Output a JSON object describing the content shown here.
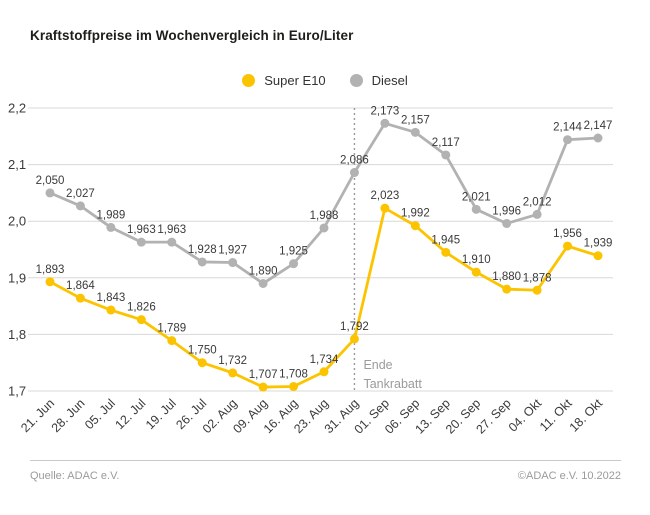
{
  "title": "Kraftstoffpreise im Wochenvergleich in Euro/Liter",
  "footer": {
    "source": "Quelle: ADAC e.V.",
    "copyright": "©ADAC e.V.  10.2022"
  },
  "colors": {
    "super_e10": "#fcc400",
    "diesel": "#b2b2b2",
    "gridline": "#d8d8d8",
    "annotation_gray": "#9b9b9b",
    "label_text": "#3a3a3a"
  },
  "chart_data": {
    "type": "line",
    "title": "Kraftstoffpreise im Wochenvergleich in Euro/Liter",
    "ylabel": "Euro/Liter",
    "categories": [
      "21. Jun",
      "28. Jun",
      "05. Jul",
      "12. Jul",
      "19. Jul",
      "26. Jul",
      "02. Aug",
      "09. Aug",
      "16. Aug",
      "23. Aug",
      "31. Aug",
      "01. Sep",
      "06. Sep",
      "13. Sep",
      "20. Sep",
      "27. Sep",
      "04. Okt",
      "11. Okt",
      "18. Okt"
    ],
    "series": [
      {
        "name": "Super E10",
        "color": "#fcc400",
        "values": [
          1.893,
          1.864,
          1.843,
          1.826,
          1.789,
          1.75,
          1.732,
          1.707,
          1.708,
          1.734,
          1.792,
          2.023,
          1.992,
          1.945,
          1.91,
          1.88,
          1.878,
          1.956,
          1.939
        ]
      },
      {
        "name": "Diesel",
        "color": "#b2b2b2",
        "values": [
          2.05,
          2.027,
          1.989,
          1.963,
          1.963,
          1.928,
          1.927,
          1.89,
          1.925,
          1.988,
          2.086,
          2.173,
          2.157,
          2.117,
          2.021,
          1.996,
          2.012,
          2.144,
          2.147
        ]
      }
    ],
    "ylim": [
      1.7,
      2.2
    ],
    "ytick_labels": [
      "2,2",
      "2,1",
      "2,0",
      "1,9",
      "1,8",
      "1,7"
    ],
    "grid": true,
    "legend_position": "top-center",
    "value_labels": true,
    "decimal_separator": ",",
    "annotation": {
      "category": "31. Aug",
      "lines": [
        "Ende",
        "Tankrabatt"
      ]
    }
  }
}
